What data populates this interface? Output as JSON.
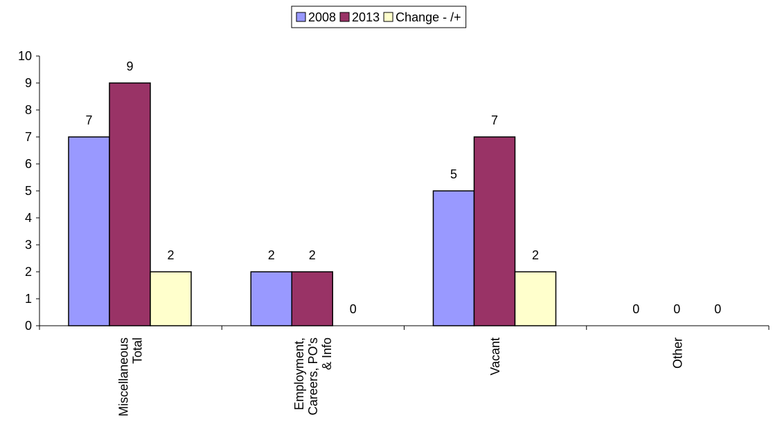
{
  "chart_data": {
    "type": "bar",
    "categories": [
      [
        "Miscellaneous",
        "Total"
      ],
      [
        "Employment,",
        "Careers, PO's",
        "& Info"
      ],
      [
        "Vacant"
      ],
      [
        "Other"
      ]
    ],
    "series": [
      {
        "name": "2008",
        "color": "#9999ff",
        "values": [
          7,
          2,
          5,
          0
        ]
      },
      {
        "name": "2013",
        "color": "#993366",
        "values": [
          9,
          2,
          7,
          0
        ]
      },
      {
        "name": "Change - /+",
        "color": "#ffffcc",
        "values": [
          2,
          0,
          2,
          0
        ]
      }
    ],
    "yticks": [
      "0",
      "1",
      "2",
      "3",
      "4",
      "5",
      "6",
      "7",
      "8",
      "9",
      "10"
    ],
    "ylim": [
      0,
      10
    ],
    "grid": false,
    "legend_position": "top-center",
    "data_labels": true
  }
}
